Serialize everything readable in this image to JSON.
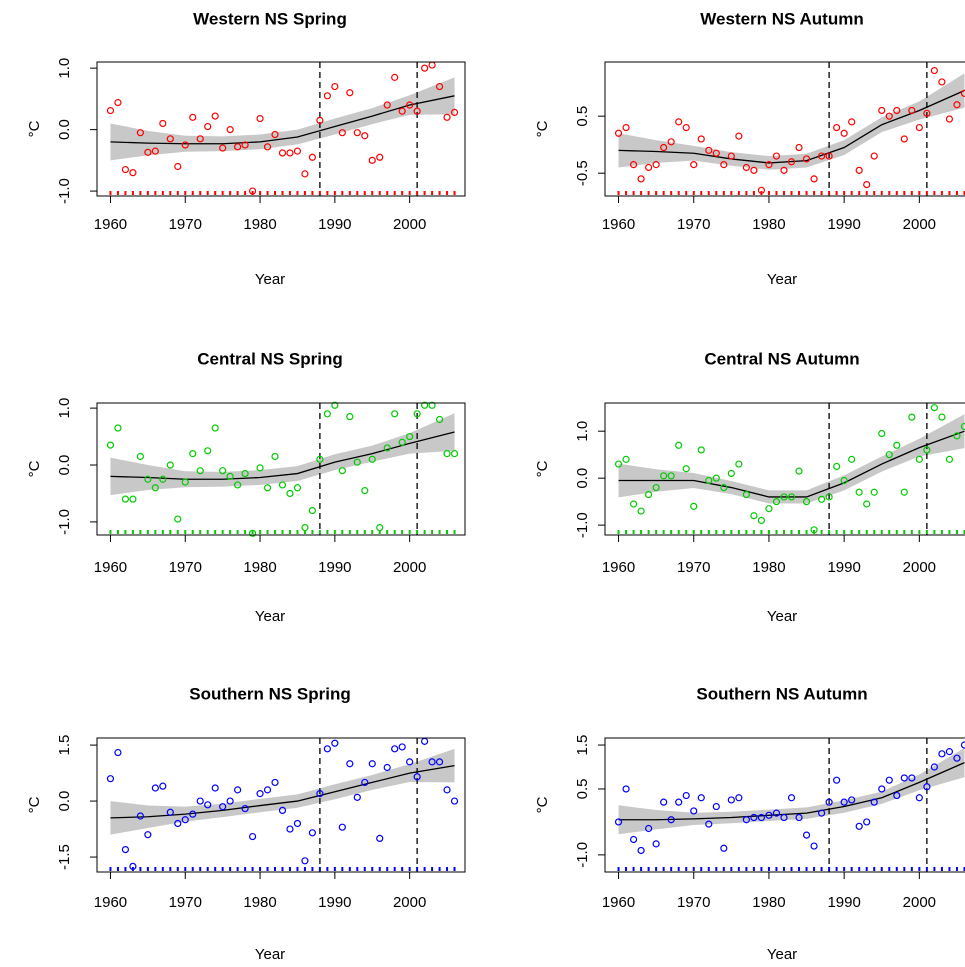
{
  "chart_data": [
    {
      "type": "scatter",
      "title": "Western NS Spring",
      "xlabel": "Year",
      "ylabel": "°C",
      "color": "#ff0000",
      "x": [
        1960,
        1961,
        1962,
        1963,
        1964,
        1965,
        1966,
        1967,
        1968,
        1969,
        1970,
        1971,
        1972,
        1973,
        1974,
        1975,
        1976,
        1977,
        1978,
        1979,
        1980,
        1981,
        1982,
        1983,
        1984,
        1985,
        1986,
        1987,
        1988,
        1989,
        1990,
        1991,
        1992,
        1993,
        1994,
        1995,
        1996,
        1997,
        1998,
        1999,
        2000,
        2001,
        2002,
        2003,
        2004,
        2005,
        2006
      ],
      "values": [
        0.31,
        0.44,
        -0.65,
        -0.7,
        -0.05,
        -0.37,
        -0.35,
        0.1,
        -0.15,
        -0.6,
        -0.25,
        0.2,
        -0.15,
        0.05,
        0.22,
        -0.3,
        0.0,
        -0.28,
        -0.25,
        -1.0,
        0.18,
        -0.28,
        -0.08,
        -0.38,
        -0.38,
        -0.35,
        -0.72,
        -0.45,
        0.15,
        0.55,
        0.7,
        -0.05,
        0.6,
        -0.05,
        -0.1,
        -0.5,
        -0.45,
        0.4,
        0.85,
        0.3,
        0.4,
        0.3,
        1.0,
        1.05,
        0.7,
        0.2,
        0.28
      ],
      "xlim": [
        1958.2,
        2007.4
      ],
      "ylim": [
        -1.08,
        1.1
      ],
      "xticks": [
        1960,
        1970,
        1980,
        1990,
        2000
      ],
      "yticks": [
        {
          "value": -1,
          "label": "-1.0"
        },
        {
          "value": 0,
          "label": "0.0"
        },
        {
          "value": 1,
          "label": "1.0"
        }
      ],
      "vlines": [
        1988,
        2001
      ],
      "rug": true,
      "fit": {
        "x": [
          1960,
          1965,
          1970,
          1975,
          1980,
          1985,
          1990,
          1995,
          2000,
          2006
        ],
        "values": [
          -0.2,
          -0.22,
          -0.23,
          -0.23,
          -0.2,
          -0.12,
          0.05,
          0.22,
          0.4,
          0.55
        ],
        "lower": [
          -0.5,
          -0.42,
          -0.36,
          -0.35,
          -0.32,
          -0.24,
          -0.08,
          0.09,
          0.24,
          0.25
        ],
        "upper": [
          0.1,
          -0.02,
          -0.1,
          -0.11,
          -0.08,
          0.0,
          0.18,
          0.35,
          0.56,
          0.85
        ],
        "color": "#000000",
        "band_color": "#c8c8c8"
      }
    },
    {
      "type": "scatter",
      "title": "Western NS Autumn",
      "xlabel": "Year",
      "ylabel": "°C",
      "color": "#ff0000",
      "x": [
        1960,
        1961,
        1962,
        1963,
        1964,
        1965,
        1966,
        1967,
        1968,
        1969,
        1970,
        1971,
        1972,
        1973,
        1974,
        1975,
        1976,
        1977,
        1978,
        1979,
        1980,
        1981,
        1982,
        1983,
        1984,
        1985,
        1986,
        1987,
        1988,
        1989,
        1990,
        1991,
        1992,
        1993,
        1994,
        1995,
        1996,
        1997,
        1998,
        1999,
        2000,
        2001,
        2002,
        2003,
        2004,
        2005,
        2006
      ],
      "values": [
        0.2,
        0.3,
        -0.35,
        -0.6,
        -0.4,
        -0.35,
        -0.05,
        0.05,
        0.4,
        0.3,
        -0.35,
        0.1,
        -0.1,
        -0.15,
        -0.35,
        -0.2,
        0.15,
        -0.4,
        -0.45,
        -0.8,
        -0.35,
        -0.2,
        -0.45,
        -0.3,
        -0.05,
        -0.25,
        -0.6,
        -0.2,
        -0.2,
        0.3,
        0.2,
        0.4,
        -0.45,
        -0.7,
        -0.2,
        0.6,
        0.5,
        0.6,
        0.1,
        0.6,
        0.3,
        0.55,
        1.3,
        1.1,
        0.45,
        0.7,
        0.9
      ],
      "xlim": [
        1958.2,
        2007.4
      ],
      "ylim": [
        -0.9,
        1.45
      ],
      "xticks": [
        1960,
        1970,
        1980,
        1990,
        2000
      ],
      "yticks": [
        -0.5,
        0.5
      ],
      "vlines": [
        1988,
        2001
      ],
      "rug": true,
      "fit": {
        "x": [
          1960,
          1965,
          1970,
          1975,
          1980,
          1985,
          1990,
          1995,
          2000,
          2006
        ],
        "values": [
          -0.1,
          -0.12,
          -0.15,
          -0.25,
          -0.32,
          -0.28,
          -0.05,
          0.35,
          0.6,
          0.95
        ],
        "lower": [
          -0.4,
          -0.32,
          -0.28,
          -0.37,
          -0.44,
          -0.4,
          -0.18,
          0.22,
          0.44,
          0.65
        ],
        "upper": [
          0.2,
          0.08,
          -0.02,
          -0.13,
          -0.2,
          -0.16,
          0.08,
          0.48,
          0.76,
          1.25
        ],
        "color": "#000000",
        "band_color": "#c8c8c8"
      }
    },
    {
      "type": "scatter",
      "title": "Central NS Spring",
      "xlabel": "Year",
      "ylabel": "°C",
      "color": "#00cc00",
      "x": [
        1960,
        1961,
        1962,
        1963,
        1964,
        1965,
        1966,
        1967,
        1968,
        1969,
        1970,
        1971,
        1972,
        1973,
        1974,
        1975,
        1976,
        1977,
        1978,
        1979,
        1980,
        1981,
        1982,
        1983,
        1984,
        1985,
        1986,
        1987,
        1988,
        1989,
        1990,
        1991,
        1992,
        1993,
        1994,
        1995,
        1996,
        1997,
        1998,
        1999,
        2000,
        2001,
        2002,
        2003,
        2004,
        2005,
        2006
      ],
      "values": [
        0.35,
        0.65,
        -0.6,
        -0.6,
        0.15,
        -0.25,
        -0.4,
        -0.25,
        0.0,
        -0.95,
        -0.3,
        0.2,
        -0.1,
        0.25,
        0.65,
        -0.1,
        -0.2,
        -0.35,
        -0.15,
        -1.2,
        -0.05,
        -0.4,
        0.15,
        -0.35,
        -0.5,
        -0.4,
        -1.1,
        -0.8,
        0.1,
        0.9,
        1.05,
        -0.1,
        0.85,
        0.05,
        -0.45,
        0.1,
        -1.1,
        0.3,
        0.9,
        0.4,
        0.5,
        0.9,
        1.05,
        1.05,
        0.8,
        0.2,
        0.2
      ],
      "xlim": [
        1958.2,
        2007.4
      ],
      "ylim": [
        -1.23,
        1.09
      ],
      "xticks": [
        1960,
        1970,
        1980,
        1990,
        2000
      ],
      "yticks": [
        {
          "value": -1,
          "label": "-1.0"
        },
        {
          "value": 0,
          "label": "0.0"
        },
        {
          "value": 1,
          "label": "1.0"
        }
      ],
      "vlines": [
        1988,
        2001
      ],
      "rug": true,
      "fit": {
        "x": [
          1960,
          1965,
          1970,
          1975,
          1980,
          1985,
          1990,
          1995,
          2000,
          2006
        ],
        "values": [
          -0.2,
          -0.22,
          -0.25,
          -0.25,
          -0.22,
          -0.15,
          0.05,
          0.2,
          0.38,
          0.58
        ],
        "lower": [
          -0.53,
          -0.44,
          -0.39,
          -0.38,
          -0.35,
          -0.28,
          -0.09,
          0.06,
          0.2,
          0.25
        ],
        "upper": [
          0.13,
          0.0,
          -0.11,
          -0.12,
          -0.09,
          -0.02,
          0.19,
          0.34,
          0.56,
          0.91
        ],
        "color": "#000000",
        "band_color": "#c8c8c8"
      }
    },
    {
      "type": "scatter",
      "title": "Central NS Autumn",
      "xlabel": "Year",
      "ylabel": "°C",
      "color": "#00cc00",
      "x": [
        1960,
        1961,
        1962,
        1963,
        1964,
        1965,
        1966,
        1967,
        1968,
        1969,
        1970,
        1971,
        1972,
        1973,
        1974,
        1975,
        1976,
        1977,
        1978,
        1979,
        1980,
        1981,
        1982,
        1983,
        1984,
        1985,
        1986,
        1987,
        1988,
        1989,
        1990,
        1991,
        1992,
        1993,
        1994,
        1995,
        1996,
        1997,
        1998,
        1999,
        2000,
        2001,
        2002,
        2003,
        2004,
        2005,
        2006
      ],
      "values": [
        0.3,
        0.4,
        -0.55,
        -0.7,
        -0.35,
        -0.2,
        0.05,
        0.05,
        0.7,
        0.2,
        -0.6,
        0.6,
        -0.05,
        0.0,
        -0.2,
        0.1,
        0.3,
        -0.35,
        -0.8,
        -0.9,
        -0.65,
        -0.5,
        -0.4,
        -0.4,
        0.15,
        -0.5,
        -1.1,
        -0.45,
        -0.4,
        0.25,
        -0.05,
        0.4,
        -0.3,
        -0.55,
        -0.3,
        0.95,
        0.5,
        0.7,
        -0.3,
        1.3,
        0.4,
        0.6,
        1.5,
        1.3,
        0.4,
        0.9,
        1.1
      ],
      "xlim": [
        1958.2,
        2007.4
      ],
      "ylim": [
        -1.21,
        1.6
      ],
      "xticks": [
        1960,
        1970,
        1980,
        1990,
        2000
      ],
      "yticks": [
        {
          "value": -1,
          "label": "-1.0"
        },
        {
          "value": 0,
          "label": "0.0"
        },
        {
          "value": 1,
          "label": "1.0"
        }
      ],
      "vlines": [
        1988,
        2001
      ],
      "rug": true,
      "fit": {
        "x": [
          1960,
          1965,
          1970,
          1975,
          1980,
          1985,
          1990,
          1995,
          2000,
          2006
        ],
        "values": [
          -0.05,
          -0.05,
          -0.05,
          -0.2,
          -0.4,
          -0.4,
          -0.1,
          0.3,
          0.65,
          1.0
        ],
        "lower": [
          -0.41,
          -0.29,
          -0.21,
          -0.34,
          -0.54,
          -0.54,
          -0.26,
          0.14,
          0.46,
          0.64
        ],
        "upper": [
          0.31,
          0.19,
          0.11,
          -0.06,
          -0.26,
          -0.26,
          0.06,
          0.46,
          0.84,
          1.36
        ],
        "color": "#000000",
        "band_color": "#c8c8c8"
      }
    },
    {
      "type": "scatter",
      "title": "Southern NS Spring",
      "xlabel": "Year",
      "ylabel": "°C",
      "color": "#0000ff",
      "x": [
        1960,
        1961,
        1962,
        1963,
        1964,
        1965,
        1966,
        1967,
        1968,
        1969,
        1970,
        1971,
        1972,
        1973,
        1974,
        1975,
        1976,
        1977,
        1978,
        1979,
        1980,
        1981,
        1982,
        1983,
        1984,
        1985,
        1986,
        1987,
        1988,
        1989,
        1990,
        1991,
        1992,
        1993,
        1994,
        1995,
        1996,
        1997,
        1998,
        1999,
        2000,
        2001,
        2002,
        2003,
        2004,
        2005,
        2006
      ],
      "values": [
        0.6,
        1.3,
        -1.3,
        -1.75,
        -0.4,
        -0.9,
        0.35,
        0.4,
        -0.3,
        -0.6,
        -0.5,
        -0.35,
        0.0,
        -0.1,
        0.35,
        -0.15,
        0.0,
        0.3,
        -0.2,
        -0.95,
        0.2,
        0.3,
        0.5,
        -0.25,
        -0.75,
        -0.6,
        -1.6,
        -0.85,
        0.2,
        1.4,
        1.55,
        -0.7,
        1.0,
        0.1,
        0.5,
        1.0,
        -1.0,
        0.9,
        1.4,
        1.45,
        1.05,
        0.65,
        1.6,
        1.05,
        1.05,
        0.3,
        0.0
      ],
      "xlim": [
        1958.2,
        2007.4
      ],
      "ylim": [
        -1.9,
        1.69
      ],
      "xticks": [
        1960,
        1970,
        1980,
        1990,
        2000
      ],
      "yticks": [
        -1.5,
        {
          "value": 0,
          "label": "0.0"
        },
        1.5
      ],
      "vlines": [
        1988,
        2001
      ],
      "rug": true,
      "fit": {
        "x": [
          1960,
          1965,
          1970,
          1975,
          1980,
          1985,
          1990,
          1995,
          2000,
          2006
        ],
        "values": [
          -0.45,
          -0.42,
          -0.35,
          -0.25,
          -0.12,
          0.0,
          0.25,
          0.5,
          0.75,
          0.95
        ],
        "lower": [
          -0.9,
          -0.72,
          -0.55,
          -0.43,
          -0.3,
          -0.18,
          0.05,
          0.3,
          0.51,
          0.5
        ],
        "upper": [
          0.0,
          -0.12,
          -0.15,
          -0.07,
          0.06,
          0.18,
          0.45,
          0.7,
          0.99,
          1.4
        ],
        "color": "#000000",
        "band_color": "#c8c8c8"
      }
    },
    {
      "type": "scatter",
      "title": "Southern NS Autumn",
      "xlabel": "Year",
      "ylabel": "°C",
      "color": "#0000ff",
      "x": [
        1960,
        1961,
        1962,
        1963,
        1964,
        1965,
        1966,
        1967,
        1968,
        1969,
        1970,
        1971,
        1972,
        1973,
        1974,
        1975,
        1976,
        1977,
        1978,
        1979,
        1980,
        1981,
        1982,
        1983,
        1984,
        1985,
        1986,
        1987,
        1988,
        1989,
        1990,
        1991,
        1992,
        1993,
        1994,
        1995,
        1996,
        1997,
        1998,
        1999,
        2000,
        2001,
        2002,
        2003,
        2004,
        2005,
        2006
      ],
      "values": [
        -0.25,
        0.5,
        -0.65,
        -0.9,
        -0.4,
        -0.75,
        0.2,
        -0.2,
        0.2,
        0.35,
        0.0,
        0.3,
        -0.3,
        0.1,
        -0.85,
        0.25,
        0.3,
        -0.2,
        -0.15,
        -0.15,
        -0.1,
        -0.05,
        -0.15,
        0.3,
        -0.15,
        -0.55,
        -0.8,
        -0.05,
        0.2,
        0.7,
        0.2,
        0.25,
        -0.35,
        -0.25,
        0.2,
        0.5,
        0.7,
        0.35,
        0.75,
        0.75,
        0.3,
        0.55,
        1.0,
        1.3,
        1.35,
        1.2,
        1.5
      ],
      "xlim": [
        1958.2,
        2007.4
      ],
      "ylim": [
        -1.39,
        1.66
      ],
      "xticks": [
        1960,
        1970,
        1980,
        1990,
        2000
      ],
      "yticks": [
        {
          "value": -1,
          "label": "-1.0"
        },
        0.5,
        1.5
      ],
      "vlines": [
        1988,
        2001
      ],
      "rug": true,
      "fit": {
        "x": [
          1960,
          1965,
          1970,
          1975,
          1980,
          1985,
          1990,
          1995,
          2000,
          2006
        ],
        "values": [
          -0.2,
          -0.2,
          -0.18,
          -0.15,
          -0.1,
          -0.05,
          0.1,
          0.3,
          0.65,
          1.1
        ],
        "lower": [
          -0.53,
          -0.42,
          -0.32,
          -0.28,
          -0.23,
          -0.18,
          -0.04,
          0.16,
          0.47,
          0.77
        ],
        "upper": [
          0.13,
          0.02,
          -0.04,
          -0.02,
          0.03,
          0.08,
          0.24,
          0.44,
          0.83,
          1.43
        ],
        "color": "#000000",
        "band_color": "#c8c8c8"
      }
    }
  ]
}
